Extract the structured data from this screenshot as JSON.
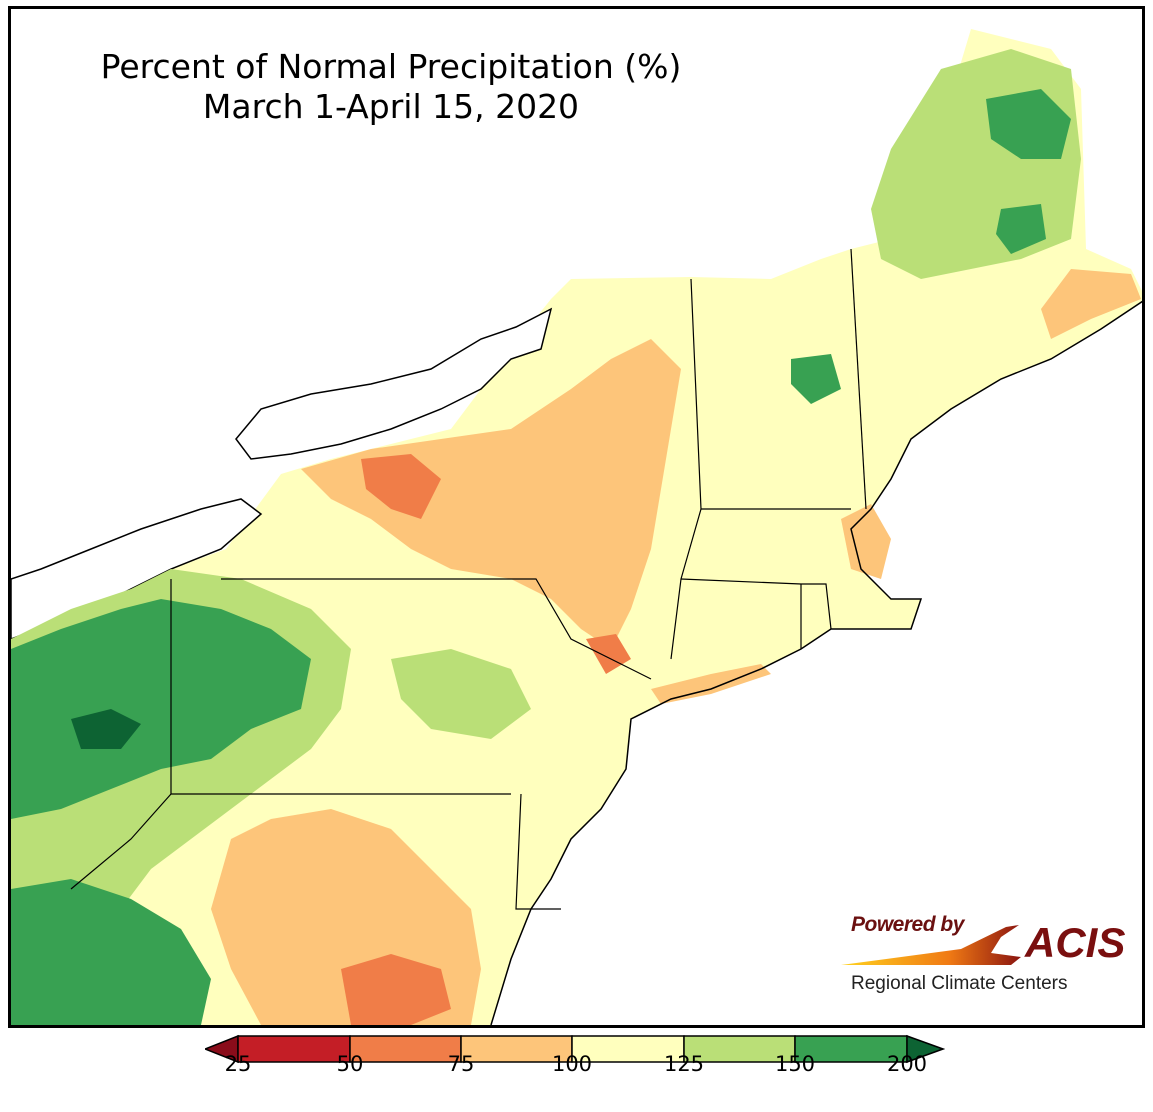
{
  "title": {
    "line1": "Percent of Normal Precipitation (%)",
    "line2": "March 1-April 15, 2020"
  },
  "logo": {
    "powered_by": "Powered by",
    "acis": "ACIS",
    "regional": "Regional Climate Centers"
  },
  "colors": {
    "bin_25_50": "#c41e26",
    "bin_50_75": "#f07d48",
    "bin_75_100": "#fdc57a",
    "bin_100_125": "#ffffbe",
    "bin_125_150": "#badf77",
    "bin_150_200": "#38a152",
    "over_200": "#0d6333",
    "under_25": "#8a0c1a"
  },
  "legend": {
    "ticks": [
      "25",
      "50",
      "75",
      "100",
      "125",
      "150",
      "200"
    ]
  }
}
